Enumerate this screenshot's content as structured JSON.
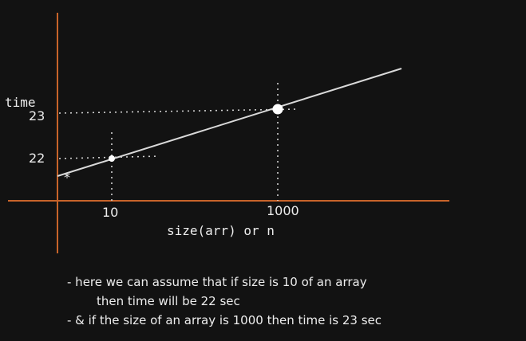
{
  "colors": {
    "background": "#121212",
    "axis": "#c8642a",
    "line": "#d9d9d9",
    "dotted": "#d0d0d0",
    "text": "#ededed"
  },
  "labels": {
    "y_title": "time",
    "y_tick_23": "23",
    "y_tick_22": "22",
    "x_tick_10": "10",
    "x_tick_1000": "1000",
    "x_title": "size(arr) or n",
    "star": "*"
  },
  "notes": [
    "- here we can assume that if size is 10 of an array",
    "then time will be 22 sec",
    "- & if the size of an array is 1000 then time is 23 sec"
  ],
  "points": [
    {
      "size": 10,
      "time": 22
    },
    {
      "size": 1000,
      "time": 23
    }
  ]
}
